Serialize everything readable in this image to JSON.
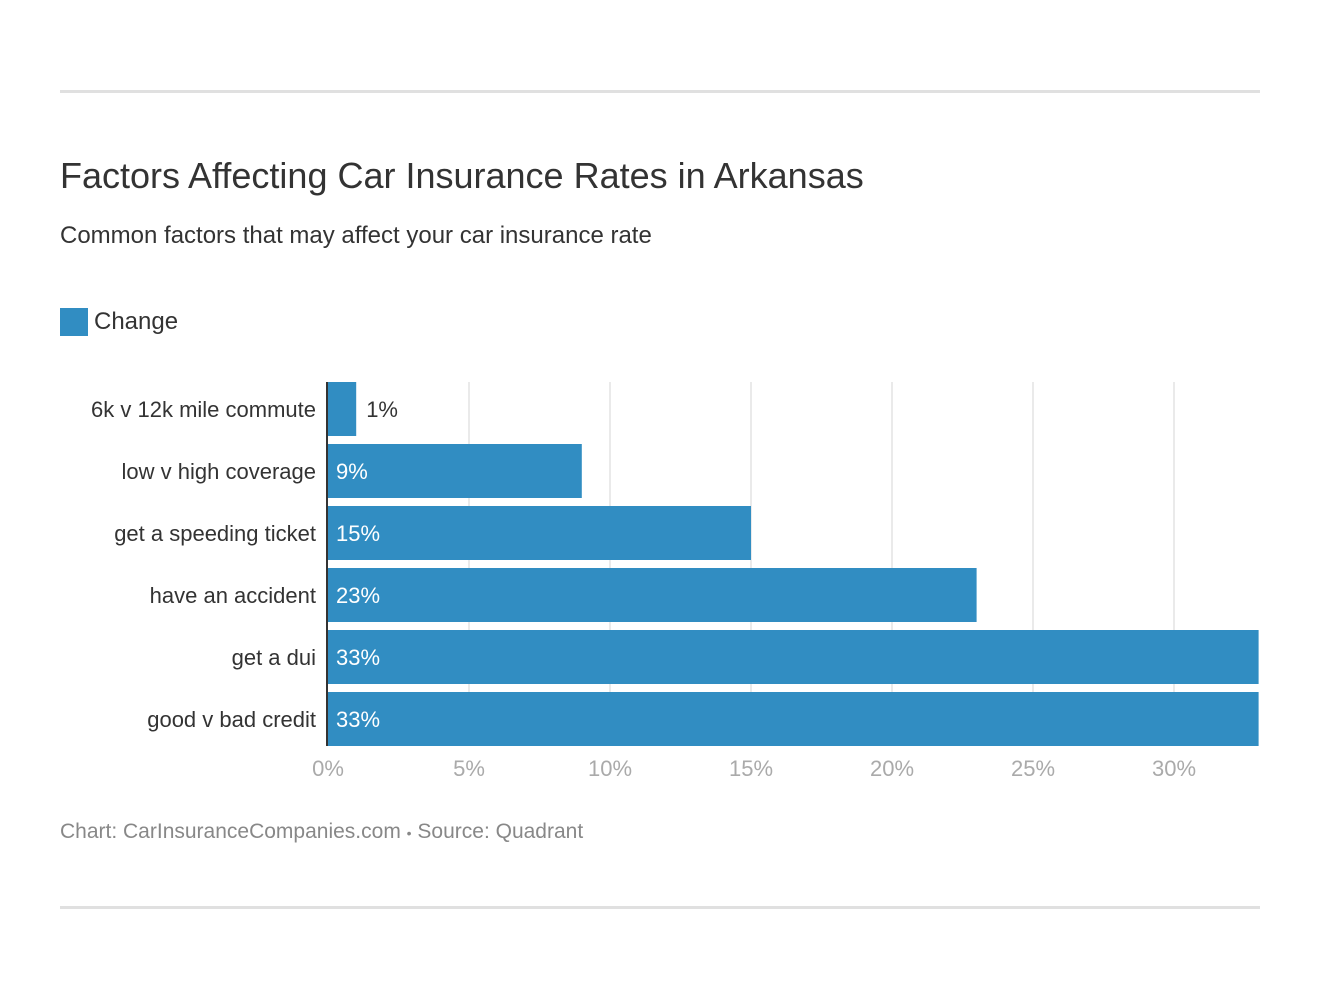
{
  "title": "Factors Affecting Car Insurance Rates in Arkansas",
  "subtitle": "Common factors that may affect your car insurance rate",
  "footer": {
    "chart_credit": "Chart: CarInsuranceCompanies.com",
    "separator": "•",
    "source": "Source: Quadrant"
  },
  "chart_data": {
    "type": "bar",
    "orientation": "horizontal",
    "title": "Factors Affecting Car Insurance Rates in Arkansas",
    "subtitle": "Common factors that may affect your car insurance rate",
    "categories": [
      "6k v 12k mile commute",
      "low v high coverage",
      "get a speeding ticket",
      "have an accident",
      "get a dui",
      "good v bad credit"
    ],
    "series": [
      {
        "name": "Change",
        "color": "#318dc2",
        "values": [
          1,
          9,
          15,
          23,
          33,
          33
        ]
      }
    ],
    "data_labels": [
      "1%",
      "9%",
      "15%",
      "23%",
      "33%",
      "33%"
    ],
    "xlim": [
      0,
      33
    ],
    "xticks": [
      0,
      5,
      10,
      15,
      20,
      25,
      30
    ],
    "xtick_labels": [
      "0%",
      "5%",
      "10%",
      "15%",
      "20%",
      "25%",
      "30%"
    ],
    "grid": true,
    "legend": "top-left"
  }
}
